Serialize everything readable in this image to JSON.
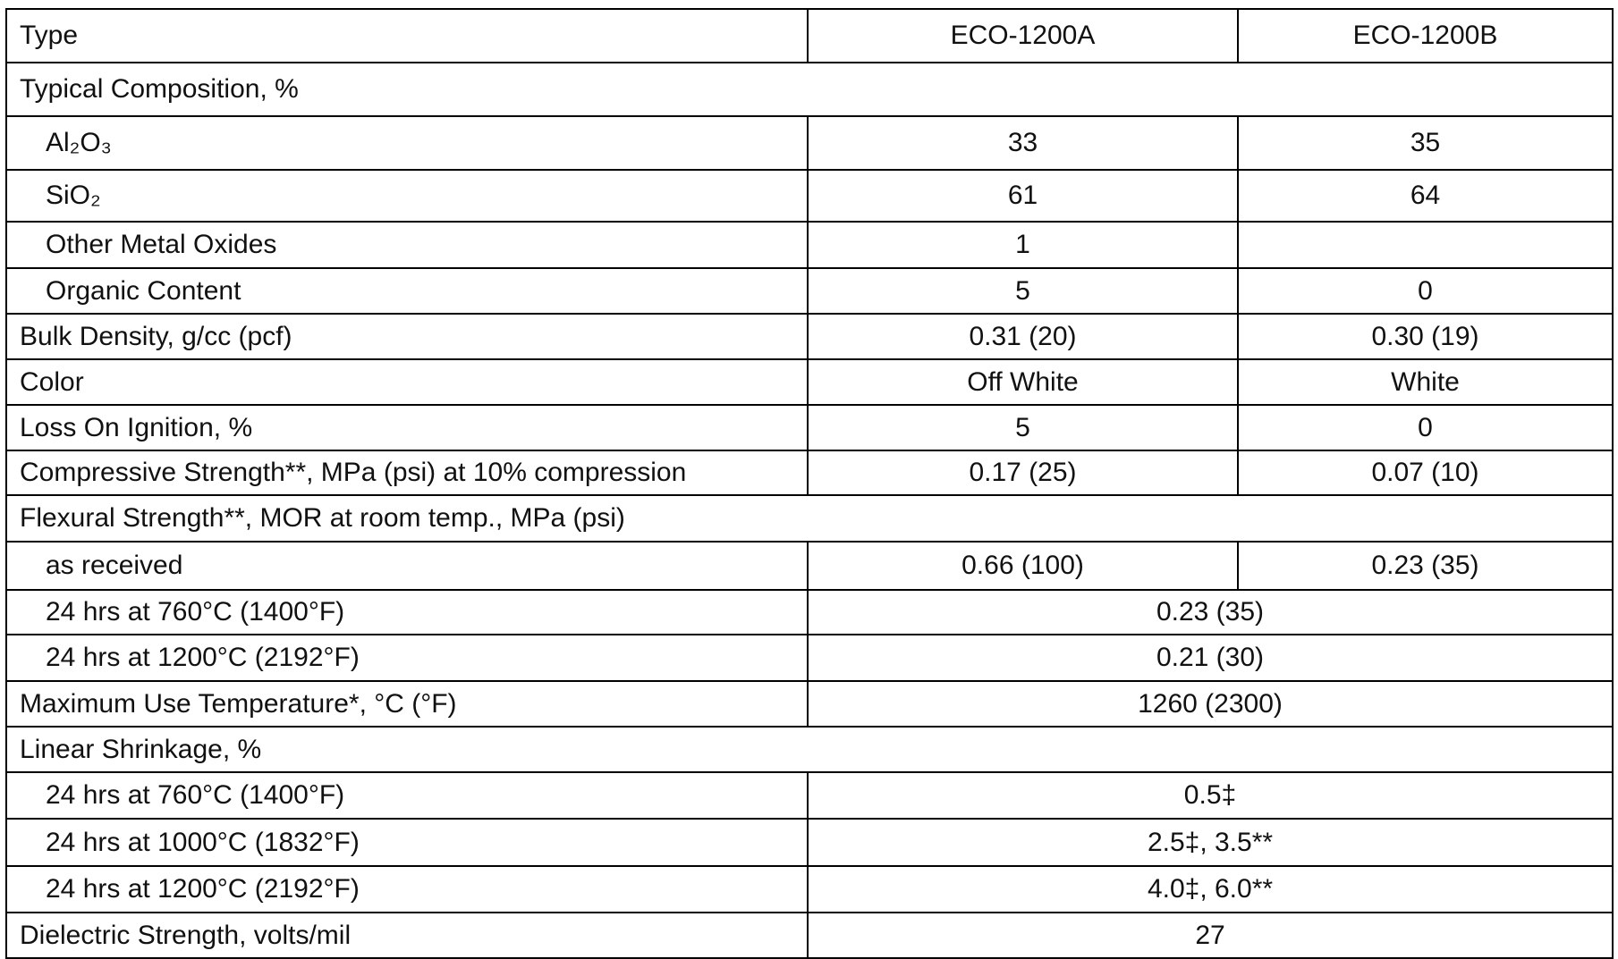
{
  "table": {
    "rows": [
      {
        "label": "Type",
        "cells": [
          "ECO-1200A",
          "ECO-1200B"
        ]
      },
      {
        "label": "Typical Composition, %",
        "items": [
          {
            "label": "Al₂O₃",
            "cells": [
              "33",
              "35"
            ]
          },
          {
            "label": "SiO₂",
            "cells": [
              "61",
              "64"
            ]
          },
          {
            "label": "Other Metal Oxides",
            "cells": [
              "1",
              null
            ]
          },
          {
            "label": "Organic Content",
            "cells": [
              "5",
              "0"
            ]
          }
        ]
      },
      {
        "label": "Bulk Density, g/cc (pcf)",
        "cells": [
          "0.31 (20)",
          "0.30 (19)"
        ]
      },
      {
        "label": "Color",
        "cells": [
          "Off White",
          "White"
        ]
      },
      {
        "label": "Loss On Ignition, %",
        "cells": [
          "5",
          "0"
        ]
      },
      {
        "label": "Compressive Strength**, MPa (psi) at 10% compression",
        "cells": [
          "0.17 (25)",
          "0.07 (10)"
        ]
      },
      {
        "label": "Flexural Strength**, MOR at room temp.,  MPa (psi)",
        "items": [
          {
            "label": "as received",
            "cells": [
              "0.66 (100)",
              "0.23 (35)"
            ]
          },
          {
            "label": "24 hrs at 760°C (1400°F)",
            "cells": [
              "0.23 (35)"
            ]
          },
          {
            "label": "24 hrs at 1200°C (2192°F)",
            "cells": [
              "0.21 (30)"
            ]
          }
        ]
      },
      {
        "label": "Maximum Use Temperature*, °C (°F)",
        "cells": [
          "1260 (2300)"
        ]
      },
      {
        "label": "Linear Shrinkage, %",
        "items": [
          {
            "label": "24 hrs at 760°C (1400°F)",
            "cells": [
              "0.5‡"
            ]
          },
          {
            "label": "24 hrs at 1000°C (1832°F)",
            "cells": [
              "2.5‡, 3.5**"
            ]
          },
          {
            "label": "24 hrs at 1200°C (2192°F)",
            "cells": [
              "4.0‡, 6.0**"
            ]
          }
        ]
      },
      {
        "label": "Dielectric Strength, volts/mil",
        "cells": [
          "27"
        ]
      }
    ]
  }
}
